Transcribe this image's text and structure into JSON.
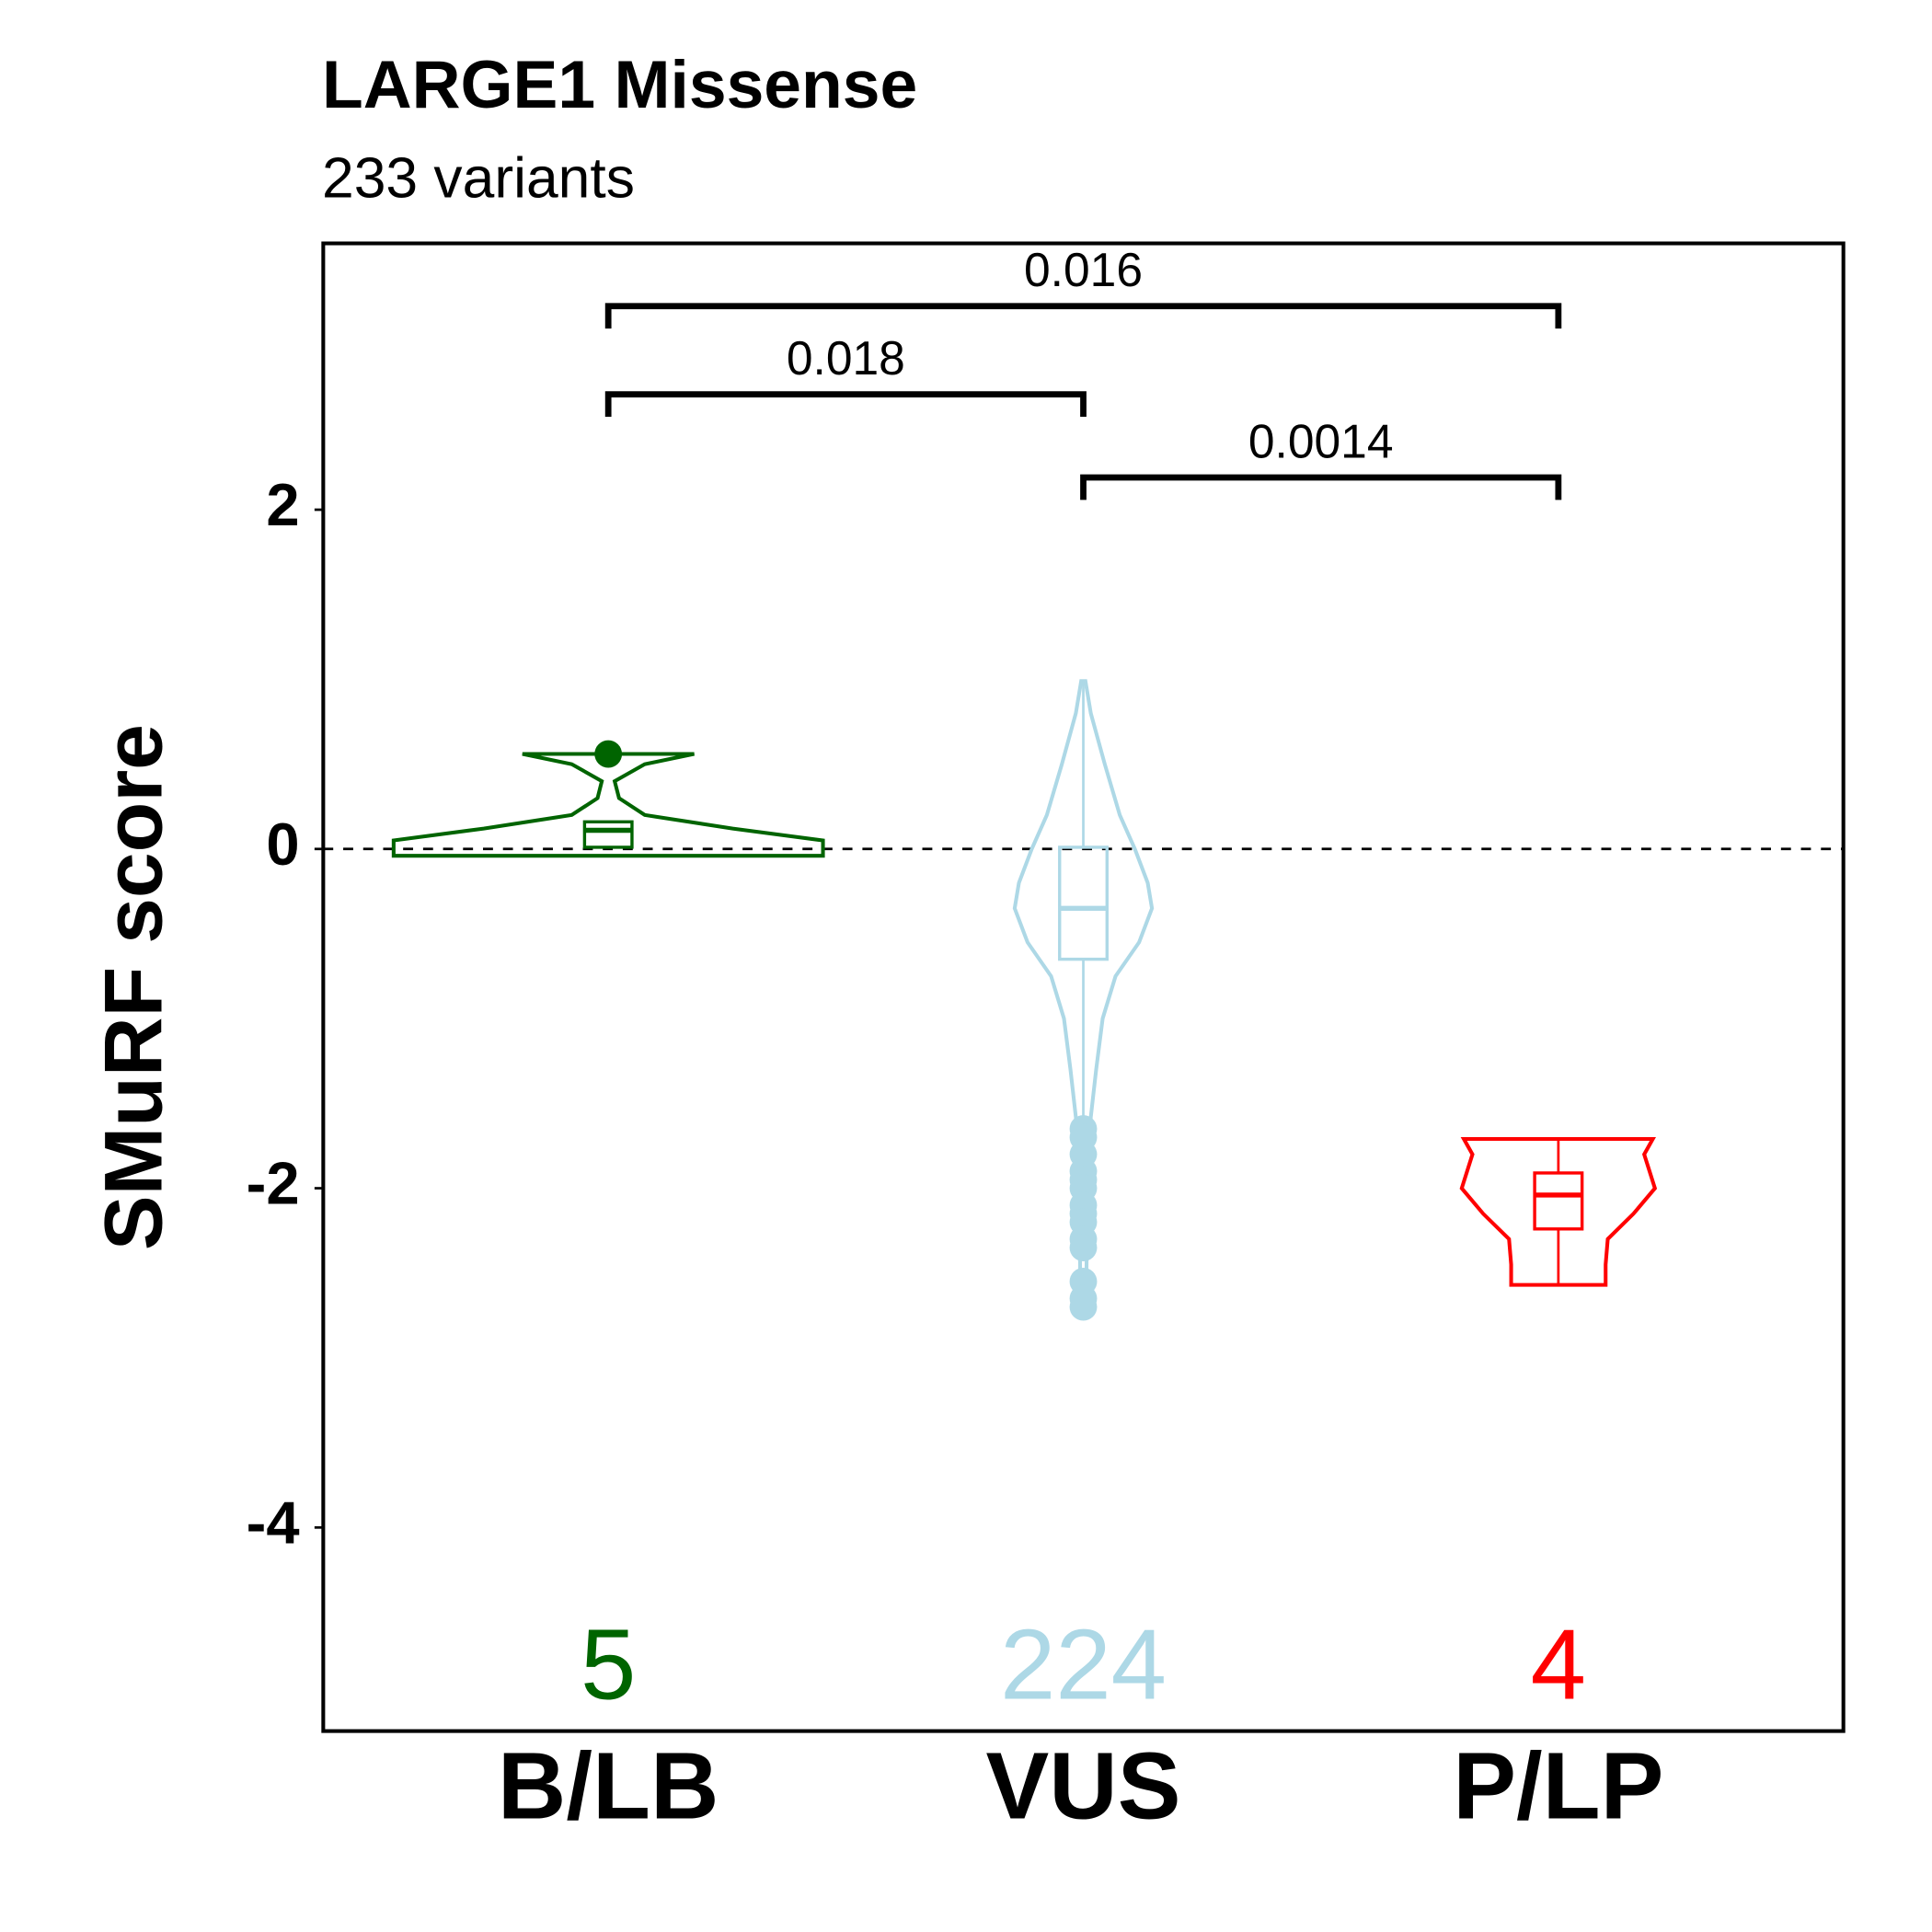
{
  "chart_data": {
    "type": "violin",
    "title": "LARGE1 Missense",
    "subtitle": "233 variants",
    "ylabel": "SMuRF score",
    "categories": [
      "B/LB",
      "VUS",
      "P/LP"
    ],
    "ylim": [
      -5.2,
      3.57
    ],
    "yticks": [
      -4,
      -2,
      0,
      2
    ],
    "hline": 0,
    "series": [
      {
        "name": "B/LB",
        "color": "#006400",
        "count": 5,
        "box": {
          "lower": 0.01,
          "q1": 0.01,
          "median": 0.11,
          "q3": 0.16,
          "upper": 0.16
        },
        "outliers": [
          0.56
        ],
        "violin": {
          "y": [
            0.56,
            0.5,
            0.4,
            0.3,
            0.2,
            0.12,
            0.05,
            -0.04
          ],
          "density": [
            0.4,
            0.17,
            0.03,
            0.05,
            0.17,
            0.58,
            1,
            1
          ]
        }
      },
      {
        "name": "VUS",
        "color": "#add8e6",
        "count": 224,
        "box": {
          "lower": -1.58,
          "q1": -0.65,
          "median": -0.35,
          "q3": 0.01,
          "upper": 0.99
        },
        "outliers": [
          -1.65,
          -1.7,
          -1.8,
          -1.9,
          -1.95,
          -2.0,
          -2.1,
          -2.15,
          -2.2,
          -2.3,
          -2.35,
          -2.55,
          -2.65,
          -2.7
        ],
        "violin": {
          "y": [
            0.99,
            0.8,
            0.5,
            0.2,
            0,
            -0.2,
            -0.35,
            -0.55,
            -0.75,
            -1.0,
            -1.3,
            -1.58,
            -1.8,
            -2.2,
            -2.7
          ],
          "density": [
            0.01,
            0.035,
            0.1,
            0.17,
            0.24,
            0.3,
            0.32,
            0.26,
            0.15,
            0.09,
            0.06,
            0.035,
            0.025,
            0.018,
            0.012
          ]
        }
      },
      {
        "name": "P/LP",
        "color": "#ff0000",
        "count": 4,
        "box": {
          "lower": -2.57,
          "q1": -2.24,
          "median": -2.04,
          "q3": -1.91,
          "upper": -1.71
        },
        "outliers": [],
        "violin": {
          "y": [
            -1.71,
            -1.8,
            -2.0,
            -2.15,
            -2.3,
            -2.45,
            -2.57
          ],
          "density": [
            0.44,
            0.4,
            0.45,
            0.35,
            0.23,
            0.22,
            0.22
          ]
        }
      }
    ],
    "comparisons": [
      {
        "from": 0,
        "to": 2,
        "y": 3.2,
        "label": "0.016"
      },
      {
        "from": 0,
        "to": 1,
        "y": 2.68,
        "label": "0.018"
      },
      {
        "from": 1,
        "to": 2,
        "y": 2.19,
        "label": "0.0014"
      }
    ]
  }
}
